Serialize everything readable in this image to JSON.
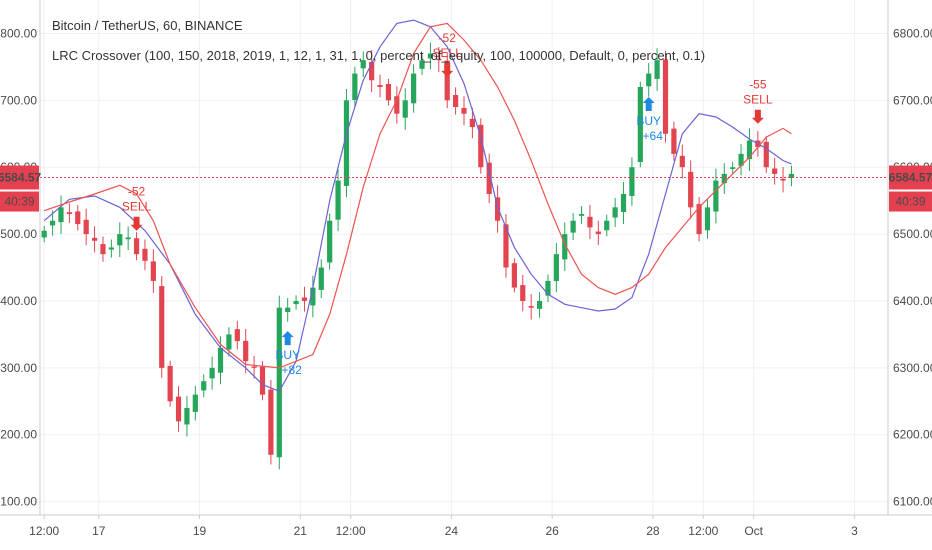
{
  "header": {
    "symbol_title": "Bitcoin / TetherUS, 60, BINANCE",
    "indicator_title": "LRC Crossover (100, 150, 2018, 2019, 1, 12, 1, 31, 1, 0, percent_of_equity, 100, 100000, Default, 0, percent, 0.1)"
  },
  "price_badge": {
    "price": "6584.57",
    "countdown": "40:39",
    "color": "#e5404f"
  },
  "colors": {
    "up": "#26a65b",
    "down": "#e2454f",
    "fast_line": "#6b63d6",
    "slow_line": "#ef5350",
    "buy": "#1e88e5",
    "sell": "#e53935"
  },
  "chart_data": {
    "type": "line",
    "ylim": [
      6080,
      6850
    ],
    "y_ticks": [
      6100,
      6200,
      6300,
      6400,
      6500,
      6600,
      6700,
      6800
    ],
    "y_tick_labels": [
      "6100.00",
      "6200.00",
      "6300.00",
      "6400.00",
      "6500.00",
      "6600.00",
      "6700.00",
      "6800.00"
    ],
    "x_ticks": [
      {
        "label": "12:00",
        "t": 0
      },
      {
        "label": "17",
        "t": 6.5
      },
      {
        "label": "19",
        "t": 18.5
      },
      {
        "label": "21",
        "t": 30.5
      },
      {
        "label": "12:00",
        "t": 36.5
      },
      {
        "label": "24",
        "t": 48.5
      },
      {
        "label": "26",
        "t": 60.5
      },
      {
        "label": "28",
        "t": 72.5
      },
      {
        "label": "12:00",
        "t": 78.5
      },
      {
        "label": "Oct",
        "t": 84.5
      },
      {
        "label": "3",
        "t": 96.5
      }
    ],
    "last_price": 6584.57,
    "candles_close": [
      6505,
      6520,
      6540,
      6530,
      6515,
      6500,
      6490,
      6470,
      6480,
      6500,
      6495,
      6470,
      6460,
      6430,
      6300,
      6250,
      6220,
      6240,
      6260,
      6280,
      6300,
      6330,
      6350,
      6340,
      6310,
      6300,
      6260,
      6170,
      6390,
      6390,
      6400,
      6400,
      6420,
      6450,
      6520,
      6580,
      6700,
      6740,
      6760,
      6730,
      6720,
      6700,
      6680,
      6700,
      6740,
      6760,
      6770,
      6760,
      6700,
      6690,
      6680,
      6660,
      6600,
      6560,
      6520,
      6450,
      6420,
      6400,
      6390,
      6400,
      6430,
      6470,
      6500,
      6520,
      6530,
      6510,
      6500,
      6520,
      6540,
      6560,
      6600,
      6720,
      6740,
      6760,
      6650,
      6620,
      6600,
      6540,
      6500,
      6540,
      6580,
      6590,
      6600,
      6620,
      6640,
      6630,
      6600,
      6590,
      6580,
      6590
    ],
    "series": [
      {
        "name": "",
        "points": [
          [
            0,
            6520
          ],
          [
            3,
            6552
          ],
          [
            6,
            6557
          ],
          [
            9,
            6540
          ],
          [
            12,
            6505
          ],
          [
            15,
            6455
          ],
          [
            18,
            6380
          ],
          [
            21,
            6330
          ],
          [
            24,
            6300
          ],
          [
            26,
            6275
          ],
          [
            28,
            6265
          ],
          [
            30,
            6310
          ],
          [
            32,
            6420
          ],
          [
            34,
            6550
          ],
          [
            36,
            6650
          ],
          [
            38,
            6730
          ],
          [
            40,
            6780
          ],
          [
            42,
            6815
          ],
          [
            44,
            6820
          ],
          [
            46,
            6810
          ],
          [
            48,
            6780
          ],
          [
            50,
            6725
          ],
          [
            52,
            6645
          ],
          [
            54,
            6540
          ],
          [
            56,
            6480
          ],
          [
            58,
            6440
          ],
          [
            60,
            6410
          ],
          [
            62,
            6395
          ],
          [
            64,
            6390
          ],
          [
            66,
            6385
          ],
          [
            68,
            6388
          ],
          [
            70,
            6405
          ],
          [
            72,
            6470
          ],
          [
            74,
            6560
          ],
          [
            76,
            6650
          ],
          [
            78,
            6680
          ],
          [
            80,
            6675
          ],
          [
            82,
            6660
          ],
          [
            84,
            6642
          ],
          [
            86,
            6628
          ],
          [
            88,
            6610
          ],
          [
            89,
            6605
          ]
        ]
      },
      {
        "name": "",
        "points": [
          [
            0,
            6535
          ],
          [
            3,
            6548
          ],
          [
            6,
            6560
          ],
          [
            9,
            6573
          ],
          [
            11,
            6560
          ],
          [
            13,
            6520
          ],
          [
            15,
            6455
          ],
          [
            18,
            6390
          ],
          [
            21,
            6335
          ],
          [
            24,
            6305
          ],
          [
            28,
            6300
          ],
          [
            32,
            6320
          ],
          [
            34,
            6380
          ],
          [
            36,
            6470
          ],
          [
            38,
            6570
          ],
          [
            40,
            6650
          ],
          [
            42,
            6700
          ],
          [
            44,
            6770
          ],
          [
            46,
            6810
          ],
          [
            48,
            6815
          ],
          [
            50,
            6790
          ],
          [
            52,
            6760
          ],
          [
            54,
            6720
          ],
          [
            56,
            6670
          ],
          [
            58,
            6610
          ],
          [
            60,
            6545
          ],
          [
            62,
            6485
          ],
          [
            64,
            6440
          ],
          [
            66,
            6420
          ],
          [
            68,
            6410
          ],
          [
            70,
            6420
          ],
          [
            72,
            6440
          ],
          [
            74,
            6480
          ],
          [
            76,
            6510
          ],
          [
            78,
            6540
          ],
          [
            80,
            6565
          ],
          [
            82,
            6590
          ],
          [
            84,
            6615
          ],
          [
            86,
            6645
          ],
          [
            88,
            6658
          ],
          [
            89,
            6650
          ]
        ]
      }
    ],
    "annotations": [
      {
        "kind": "sell",
        "t": 11,
        "label": "SELL",
        "value": "-52"
      },
      {
        "kind": "buy",
        "t": 29,
        "label": "BUY",
        "value": "+82"
      },
      {
        "kind": "sell",
        "t": 48,
        "label": "SELL",
        "value": "-52"
      },
      {
        "kind": "buy",
        "t": 72,
        "label": "BUY",
        "value": "+64"
      },
      {
        "kind": "sell",
        "t": 85,
        "label": "SELL",
        "value": "-55"
      }
    ]
  }
}
